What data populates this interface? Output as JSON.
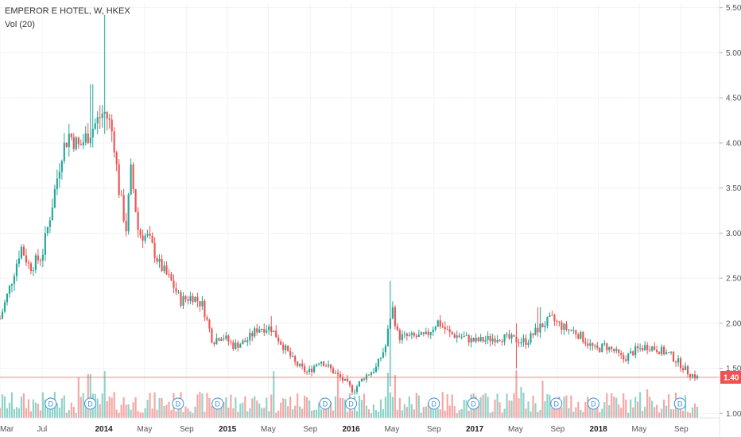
{
  "legend": {
    "symbol": "EMPEROR E HOTEL, W, HKEX",
    "indicator": "Vol (20)"
  },
  "colors": {
    "up": "#26a69a",
    "down": "#ef5350",
    "vol_up": "#8fd3c8",
    "vol_down": "#f5a6a5",
    "grid": "#f0f3fa",
    "price_line": "#ef5350",
    "dividend": "#3d8fd6"
  },
  "chart_data": {
    "type": "candlestick",
    "ylim": [
      0.95,
      5.55
    ],
    "yticks": [
      "1.00",
      "1.50",
      "2.00",
      "2.50",
      "3.00",
      "3.50",
      "4.00",
      "4.50",
      "5.00",
      "5.50"
    ],
    "ytick_values": [
      1.0,
      1.5,
      2.0,
      2.5,
      3.0,
      3.5,
      4.0,
      4.5,
      5.0,
      5.5
    ],
    "xlim": [
      2013.16,
      2018.98
    ],
    "xticks": [
      {
        "label": "Mar",
        "value": 2013.16,
        "bold": false
      },
      {
        "label": "Jul",
        "value": 2013.5,
        "bold": false
      },
      {
        "label": "2014",
        "value": 2014.0,
        "bold": true
      },
      {
        "label": "May",
        "value": 2014.33,
        "bold": false
      },
      {
        "label": "Sep",
        "value": 2014.67,
        "bold": false
      },
      {
        "label": "2015",
        "value": 2015.0,
        "bold": true
      },
      {
        "label": "May",
        "value": 2015.33,
        "bold": false
      },
      {
        "label": "Sep",
        "value": 2015.67,
        "bold": false
      },
      {
        "label": "2016",
        "value": 2016.0,
        "bold": true
      },
      {
        "label": "May",
        "value": 2016.33,
        "bold": false
      },
      {
        "label": "Sep",
        "value": 2016.67,
        "bold": false
      },
      {
        "label": "2017",
        "value": 2017.0,
        "bold": true
      },
      {
        "label": "May",
        "value": 2017.33,
        "bold": false
      },
      {
        "label": "Sep",
        "value": 2017.67,
        "bold": false
      },
      {
        "label": "2018",
        "value": 2018.0,
        "bold": true
      },
      {
        "label": "May",
        "value": 2018.33,
        "bold": false
      },
      {
        "label": "Sep",
        "value": 2018.67,
        "bold": false
      }
    ],
    "price_path": [
      [
        2013.16,
        2.05
      ],
      [
        2013.25,
        2.45
      ],
      [
        2013.33,
        2.85
      ],
      [
        2013.4,
        2.62
      ],
      [
        2013.5,
        2.75
      ],
      [
        2013.58,
        3.3
      ],
      [
        2013.66,
        3.9
      ],
      [
        2013.72,
        4.1
      ],
      [
        2013.8,
        3.95
      ],
      [
        2013.9,
        4.15
      ],
      [
        2014.0,
        4.35
      ],
      [
        2014.04,
        4.25
      ],
      [
        2014.08,
        4.05
      ],
      [
        2014.12,
        3.5
      ],
      [
        2014.18,
        3.05
      ],
      [
        2014.22,
        3.7
      ],
      [
        2014.28,
        3.0
      ],
      [
        2014.36,
        2.95
      ],
      [
        2014.45,
        2.65
      ],
      [
        2014.55,
        2.45
      ],
      [
        2014.62,
        2.25
      ],
      [
        2014.72,
        2.3
      ],
      [
        2014.8,
        2.2
      ],
      [
        2014.88,
        1.8
      ],
      [
        2014.95,
        1.87
      ],
      [
        2015.05,
        1.75
      ],
      [
        2015.15,
        1.8
      ],
      [
        2015.25,
        1.95
      ],
      [
        2015.35,
        1.95
      ],
      [
        2015.45,
        1.75
      ],
      [
        2015.55,
        1.55
      ],
      [
        2015.65,
        1.45
      ],
      [
        2015.75,
        1.6
      ],
      [
        2015.85,
        1.47
      ],
      [
        2015.95,
        1.35
      ],
      [
        2016.02,
        1.25
      ],
      [
        2016.1,
        1.4
      ],
      [
        2016.2,
        1.5
      ],
      [
        2016.28,
        1.75
      ],
      [
        2016.33,
        2.2
      ],
      [
        2016.38,
        1.85
      ],
      [
        2016.5,
        1.85
      ],
      [
        2016.6,
        1.85
      ],
      [
        2016.7,
        2.02
      ],
      [
        2016.8,
        1.88
      ],
      [
        2016.9,
        1.85
      ],
      [
        2017.0,
        1.8
      ],
      [
        2017.1,
        1.82
      ],
      [
        2017.2,
        1.85
      ],
      [
        2017.3,
        1.82
      ],
      [
        2017.42,
        1.8
      ],
      [
        2017.52,
        1.95
      ],
      [
        2017.62,
        2.05
      ],
      [
        2017.72,
        1.95
      ],
      [
        2017.82,
        1.9
      ],
      [
        2017.9,
        1.8
      ],
      [
        2017.98,
        1.7
      ],
      [
        2018.05,
        1.75
      ],
      [
        2018.12,
        1.7
      ],
      [
        2018.2,
        1.6
      ],
      [
        2018.3,
        1.7
      ],
      [
        2018.4,
        1.75
      ],
      [
        2018.5,
        1.7
      ],
      [
        2018.58,
        1.65
      ],
      [
        2018.66,
        1.55
      ],
      [
        2018.73,
        1.45
      ],
      [
        2018.8,
        1.4
      ]
    ],
    "spikes": [
      {
        "x": 2013.9,
        "high": 4.65,
        "low": 3.95
      },
      {
        "x": 2014.0,
        "high": 5.42,
        "low": 4.1
      },
      {
        "x": 2016.32,
        "high": 2.47,
        "low": 1.3
      },
      {
        "x": 2017.33,
        "high": 2.0,
        "low": 1.5
      },
      {
        "x": 2015.35,
        "high": 2.08,
        "low": 1.9
      },
      {
        "x": 2017.52,
        "high": 2.18,
        "low": 1.85
      }
    ],
    "last_price": 1.4,
    "last_price_label": "1.40",
    "volume_spikes": [
      {
        "x": 2013.8,
        "height": 0.85
      },
      {
        "x": 2013.88,
        "height": 0.92
      },
      {
        "x": 2014.0,
        "height": 0.98
      },
      {
        "x": 2015.38,
        "height": 0.98
      },
      {
        "x": 2015.9,
        "height": 0.9
      },
      {
        "x": 2016.3,
        "height": 0.95
      },
      {
        "x": 2016.35,
        "height": 0.9
      },
      {
        "x": 2017.33,
        "height": 1.0
      },
      {
        "x": 2017.38,
        "height": 0.65
      },
      {
        "x": 2017.55,
        "height": 0.78
      },
      {
        "x": 2018.4,
        "height": 0.6
      }
    ],
    "dividends": [
      {
        "label": "D",
        "x": 2013.57
      },
      {
        "label": "D",
        "x": 2013.89
      },
      {
        "label": "D",
        "x": 2014.6
      },
      {
        "label": "D",
        "x": 2014.92
      },
      {
        "label": "D",
        "x": 2015.79
      },
      {
        "label": "D",
        "x": 2016.0
      },
      {
        "label": "D",
        "x": 2016.67
      },
      {
        "label": "D",
        "x": 2016.99
      },
      {
        "label": "D",
        "x": 2017.66
      },
      {
        "label": "D",
        "x": 2017.96
      },
      {
        "label": "D",
        "x": 2018.66
      }
    ]
  }
}
